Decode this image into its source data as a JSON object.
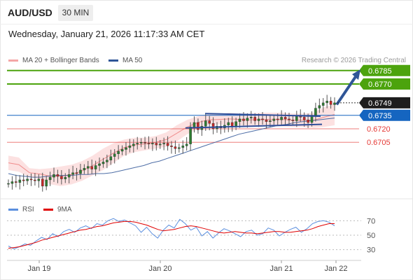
{
  "header": {
    "symbol": "AUD/USD",
    "timeframe": "30 MIN",
    "datetime": "Wednesday, January 21, 2026 11:17:33 AM CET"
  },
  "legend": {
    "items": [
      {
        "label": "MA 20 + Bollinger Bands",
        "color": "#f4a6a6"
      },
      {
        "label": "MA 50",
        "color": "#2f5597"
      }
    ],
    "credit": "Research © 2026 Trading Central"
  },
  "indicator_legend": {
    "items": [
      {
        "label": "RSI",
        "color": "#5b8fde"
      },
      {
        "label": "9MA",
        "color": "#e00000"
      }
    ]
  },
  "chart_data": [
    {
      "type": "candlestick",
      "pair": "AUD/USD",
      "interval": "30 MIN",
      "x_labels": [
        "Jan 19",
        "Jan 20",
        "Jan 21",
        "Jan 22"
      ],
      "ylim": [
        0.6645,
        0.6795
      ],
      "current_price": {
        "value": "0.6749",
        "color": "#222222"
      },
      "levels": [
        {
          "value": "0.6785",
          "kind": "resistance",
          "color": "#4ca30d"
        },
        {
          "value": "0.6770",
          "kind": "resistance",
          "color": "#4ca30d"
        },
        {
          "value": "0.6735",
          "kind": "pivot",
          "color": "#1565c0"
        },
        {
          "value": "0.6720",
          "kind": "support",
          "color": "#e53935"
        },
        {
          "value": "0.6705",
          "kind": "support",
          "color": "#e53935"
        }
      ],
      "close_series": [
        0.6659,
        0.6661,
        0.666,
        0.6663,
        0.6662,
        0.6664,
        0.6663,
        0.6662,
        0.6664,
        0.6656,
        0.6663,
        0.6666,
        0.6669,
        0.6667,
        0.6664,
        0.6666,
        0.6669,
        0.6671,
        0.667,
        0.6674,
        0.6676,
        0.6678,
        0.6675,
        0.6679,
        0.6681,
        0.6683,
        0.6685,
        0.6689,
        0.6692,
        0.6695,
        0.6697,
        0.6699,
        0.6701,
        0.6703,
        0.6704,
        0.6705,
        0.6704,
        0.6703,
        0.6704,
        0.6702,
        0.6703,
        0.6704,
        0.6701,
        0.67,
        0.6698,
        0.6699,
        0.6701,
        0.6703,
        0.6722,
        0.6727,
        0.6719,
        0.6723,
        0.6729,
        0.6726,
        0.672,
        0.6723,
        0.6721,
        0.6724,
        0.6727,
        0.6723,
        0.6728,
        0.6731,
        0.6729,
        0.6732,
        0.6733,
        0.6729,
        0.6731,
        0.673,
        0.6728,
        0.6729,
        0.6731,
        0.673,
        0.6733,
        0.6731,
        0.673,
        0.6729,
        0.6734,
        0.6733,
        0.673,
        0.6727,
        0.6735,
        0.6743,
        0.6746,
        0.6749,
        0.6751,
        0.6747,
        0.6749
      ],
      "ma50_series": [
        0.667,
        0.6668,
        0.6667,
        0.6666,
        0.6666,
        0.6667,
        0.6668,
        0.6668,
        0.6668,
        0.6669,
        0.6669,
        0.667,
        0.667,
        0.6671,
        0.6673,
        0.6675,
        0.6677,
        0.6679,
        0.6682,
        0.6684,
        0.6687,
        0.669,
        0.6693,
        0.6696,
        0.6699,
        0.6702,
        0.6705,
        0.6708,
        0.6711,
        0.6714,
        0.6716,
        0.6718,
        0.672,
        0.6722,
        0.6724,
        0.6725,
        0.6727,
        0.6728,
        0.6729,
        0.673,
        0.6731,
        0.6732
      ],
      "bollinger": {
        "upper": [
          0.669,
          0.6688,
          0.6676,
          0.6675,
          0.6676,
          0.6678,
          0.668,
          0.6684,
          0.669,
          0.6698,
          0.6704,
          0.6708,
          0.671,
          0.671,
          0.6712,
          0.6716,
          0.6724,
          0.673,
          0.6734,
          0.6736,
          0.6736,
          0.6738,
          0.6737,
          0.6737,
          0.6738,
          0.6738,
          0.6738,
          0.6737,
          0.6737,
          0.6738,
          0.6744,
          0.6748
        ],
        "lower": [
          0.6674,
          0.6672,
          0.6666,
          0.6664,
          0.6658,
          0.6656,
          0.6658,
          0.6662,
          0.6668,
          0.6674,
          0.6682,
          0.669,
          0.6694,
          0.6696,
          0.6698,
          0.67,
          0.6706,
          0.6714,
          0.672,
          0.6724,
          0.6725,
          0.6724,
          0.6724,
          0.6723,
          0.6723,
          0.6723,
          0.6723,
          0.6722,
          0.6722,
          0.6721,
          0.6722,
          0.6724
        ]
      },
      "pattern": {
        "name": "flag",
        "upper_line": [
          0.6737,
          0.6734
        ],
        "lower_line": [
          0.6721,
          0.6725
        ],
        "projection": {
          "from": 0.6747,
          "to": 0.6784
        }
      }
    },
    {
      "type": "line",
      "indicator": "RSI",
      "yticks": [
        30,
        50,
        70
      ],
      "ylim": [
        20,
        80
      ],
      "series": [
        {
          "name": "RSI",
          "color": "#5b8fde",
          "values": [
            35,
            31,
            34,
            38,
            36,
            42,
            47,
            44,
            52,
            48,
            55,
            58,
            54,
            60,
            63,
            59,
            66,
            64,
            70,
            73,
            69,
            71,
            67,
            63,
            54,
            61,
            52,
            46,
            57,
            64,
            60,
            72,
            66,
            57,
            61,
            49,
            55,
            46,
            53,
            59,
            56,
            52,
            48,
            55,
            57,
            50,
            52,
            60,
            57,
            49,
            54,
            58,
            61,
            54,
            59,
            66,
            69,
            70,
            68,
            63
          ]
        },
        {
          "name": "9MA",
          "color": "#e00000",
          "values": [
            32,
            33,
            34,
            36,
            38,
            40,
            43,
            45,
            47,
            49,
            51,
            53,
            55,
            57,
            58,
            60,
            62,
            63,
            65,
            67,
            68,
            69,
            69,
            68,
            66,
            64,
            61,
            58,
            56,
            57,
            58,
            60,
            62,
            63,
            62,
            60,
            58,
            56,
            54,
            53,
            54,
            55,
            54,
            53,
            53,
            52,
            53,
            54,
            55,
            55,
            54,
            54,
            55,
            56,
            57,
            59,
            62,
            64,
            66,
            66
          ]
        }
      ]
    }
  ]
}
